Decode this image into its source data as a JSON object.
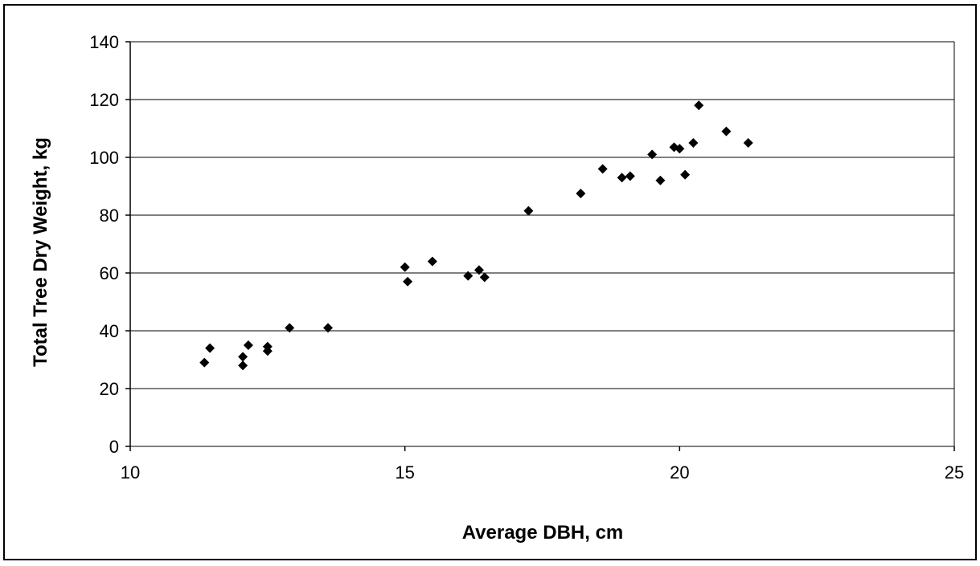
{
  "chart_data": {
    "type": "scatter",
    "title": "",
    "xlabel": "Average DBH, cm",
    "ylabel": "Total Tree Dry Weight, kg",
    "xlim": [
      10,
      25
    ],
    "ylim": [
      0,
      140
    ],
    "x_ticks": [
      10,
      15,
      20,
      25
    ],
    "y_ticks": [
      0,
      20,
      40,
      60,
      80,
      100,
      120,
      140
    ],
    "x_tick_labels": [
      "10",
      "15",
      "20",
      "25"
    ],
    "y_tick_labels": [
      "0",
      "20",
      "40",
      "60",
      "80",
      "100",
      "120",
      "140"
    ],
    "grid": "horizontal",
    "legend": "none",
    "marker": "diamond",
    "marker_color": "#000000",
    "points": [
      {
        "x": 11.35,
        "y": 29
      },
      {
        "x": 11.45,
        "y": 34
      },
      {
        "x": 12.05,
        "y": 31
      },
      {
        "x": 12.05,
        "y": 28
      },
      {
        "x": 12.15,
        "y": 35
      },
      {
        "x": 12.5,
        "y": 34.5
      },
      {
        "x": 12.5,
        "y": 33
      },
      {
        "x": 12.9,
        "y": 41
      },
      {
        "x": 13.6,
        "y": 41
      },
      {
        "x": 15.0,
        "y": 62
      },
      {
        "x": 15.05,
        "y": 57
      },
      {
        "x": 15.5,
        "y": 64
      },
      {
        "x": 16.15,
        "y": 59
      },
      {
        "x": 16.35,
        "y": 61
      },
      {
        "x": 16.45,
        "y": 58.5
      },
      {
        "x": 17.25,
        "y": 81.5
      },
      {
        "x": 18.2,
        "y": 87.5
      },
      {
        "x": 18.6,
        "y": 96
      },
      {
        "x": 18.95,
        "y": 93
      },
      {
        "x": 19.1,
        "y": 93.5
      },
      {
        "x": 19.5,
        "y": 101
      },
      {
        "x": 19.65,
        "y": 92
      },
      {
        "x": 19.9,
        "y": 103.5
      },
      {
        "x": 20.0,
        "y": 103
      },
      {
        "x": 20.1,
        "y": 94
      },
      {
        "x": 20.25,
        "y": 105
      },
      {
        "x": 20.35,
        "y": 118
      },
      {
        "x": 20.85,
        "y": 109
      },
      {
        "x": 21.25,
        "y": 105
      }
    ]
  }
}
